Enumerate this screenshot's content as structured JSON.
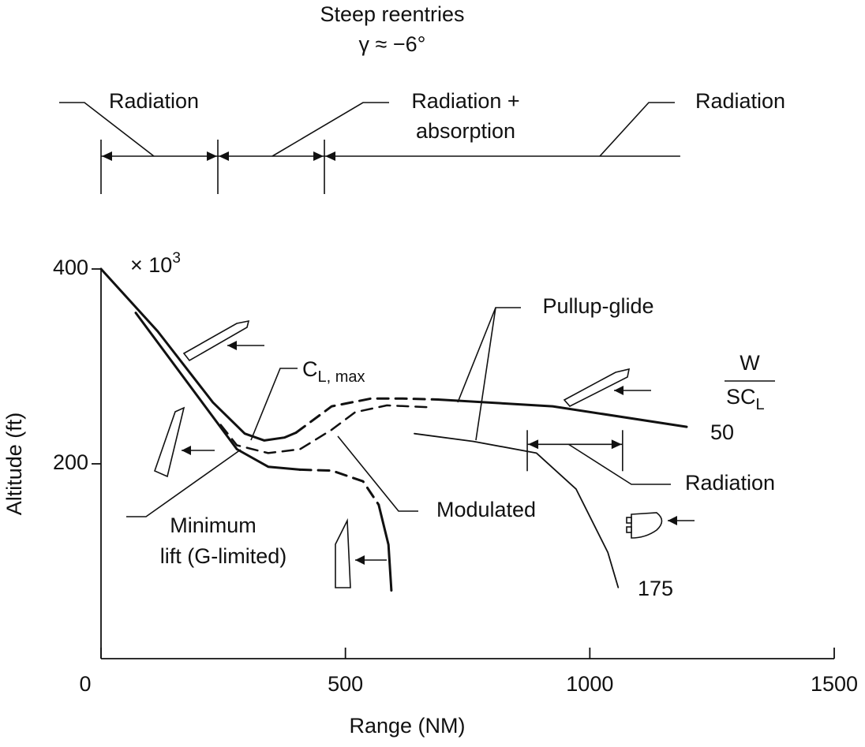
{
  "chart_data": {
    "type": "line",
    "title": "Steep reentries",
    "subtitle": "γ ≈ −6°",
    "xlabel": "Range (NM)",
    "ylabel": "Altitude (ft)",
    "y_multiplier": "× 10",
    "y_multiplier_exp": "3",
    "xlim": [
      0,
      1500
    ],
    "ylim": [
      0,
      400
    ],
    "xticks": [
      0,
      500,
      1000,
      1500
    ],
    "yticks": [
      200,
      400
    ],
    "color": "#111111",
    "series": [
      {
        "x": [
          0,
          116,
          229,
          294,
          334,
          375,
          399
        ],
        "values": [
          400,
          336,
          263,
          231,
          224,
          227,
          232
        ],
        "width": 3,
        "dashed": false
      },
      {
        "x": [
          399,
          472,
          552,
          617,
          689
        ],
        "values": [
          232,
          259,
          267,
          267,
          266
        ],
        "width": 3,
        "dashed": true
      },
      {
        "x": [
          689,
          924,
          1198
        ],
        "values": [
          266,
          259,
          238
        ],
        "width": 3,
        "dashed": false
      },
      {
        "x": [
          71,
          278,
          342,
          407
        ],
        "values": [
          355,
          215,
          197,
          194
        ],
        "width": 3,
        "dashed": false
      },
      {
        "x": [
          407,
          472,
          536,
          568
        ],
        "values": [
          194,
          193,
          182,
          158
        ],
        "width": 3,
        "dashed": true
      },
      {
        "x": [
          568,
          588,
          594
        ],
        "values": [
          158,
          117,
          70
        ],
        "width": 3,
        "dashed": false
      },
      {
        "x": [
          245,
          278,
          342,
          407,
          472,
          520,
          585,
          677
        ],
        "values": [
          240,
          219,
          211,
          215,
          235,
          253,
          260,
          258
        ],
        "width": 2.5,
        "dashed": true
      },
      {
        "x": [
          641,
          762,
          891,
          972,
          1037,
          1058
        ],
        "values": [
          231,
          223,
          211,
          174,
          109,
          73
        ],
        "width": 1.8,
        "dashed": false
      }
    ],
    "top_ranges": [
      {
        "from": 0,
        "to": 239,
        "label": "Radiation"
      },
      {
        "from": 239,
        "to": 457,
        "label": [
          "Radiation +",
          "absorption"
        ]
      },
      {
        "from": 457,
        "to": 1185,
        "label": "Radiation"
      }
    ],
    "inner_range": {
      "from": 872,
      "to": 1067,
      "at": 220,
      "label": "Radiation"
    },
    "annotations": {
      "pullup": "Pullup-glide",
      "cl_main": "C",
      "cl_sub": "L, max",
      "w": "W",
      "scl_main": "SC",
      "scl_sub": "L",
      "fifty": "50",
      "one75": "175",
      "modulated": "Modulated",
      "minlift": [
        "Minimum",
        "lift (G-limited)"
      ]
    }
  }
}
